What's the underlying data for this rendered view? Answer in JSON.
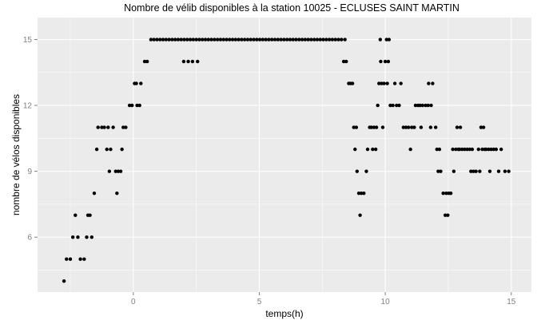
{
  "chart_data": {
    "type": "scatter",
    "title": "Nombre de vélib disponibles à la station 10025 - ECLUSES SAINT MARTIN",
    "xlabel": "temps(h)",
    "ylabel": "nombre de vélos disponibles",
    "xlim": [
      -3.8,
      15.8
    ],
    "ylim": [
      3.5,
      16.0
    ],
    "x_ticks": [
      0,
      5,
      10,
      15
    ],
    "y_ticks": [
      6,
      9,
      12,
      15
    ],
    "grid": true,
    "legend": "none",
    "colors": {
      "panel": "#ebebeb",
      "grid": "#ffffff",
      "point": "#000000",
      "tick_label": "#7f7f7f"
    },
    "points": [
      [
        -2.75,
        4
      ],
      [
        -2.65,
        5
      ],
      [
        -2.5,
        5
      ],
      [
        -2.4,
        6
      ],
      [
        -2.3,
        7
      ],
      [
        -2.2,
        6
      ],
      [
        -2.1,
        5
      ],
      [
        -1.95,
        5
      ],
      [
        -1.85,
        6
      ],
      [
        -1.8,
        7
      ],
      [
        -1.72,
        7
      ],
      [
        -1.65,
        6
      ],
      [
        -1.55,
        8
      ],
      [
        -1.45,
        10
      ],
      [
        -1.4,
        11
      ],
      [
        -1.25,
        11
      ],
      [
        -1.15,
        11
      ],
      [
        -1.05,
        10
      ],
      [
        -1.0,
        11
      ],
      [
        -0.95,
        9
      ],
      [
        -0.9,
        10
      ],
      [
        -0.8,
        11
      ],
      [
        -0.7,
        9
      ],
      [
        -0.65,
        8
      ],
      [
        -0.6,
        9
      ],
      [
        -0.5,
        9
      ],
      [
        -0.45,
        10
      ],
      [
        -0.4,
        11
      ],
      [
        -0.3,
        11
      ],
      [
        -0.15,
        12
      ],
      [
        -0.05,
        12
      ],
      [
        0.05,
        13
      ],
      [
        0.12,
        13
      ],
      [
        0.15,
        12
      ],
      [
        0.25,
        12
      ],
      [
        0.3,
        13
      ],
      [
        0.45,
        14
      ],
      [
        0.55,
        14
      ],
      [
        0.7,
        15
      ],
      [
        0.82,
        15
      ],
      [
        0.94,
        15
      ],
      [
        1.06,
        15
      ],
      [
        1.18,
        15
      ],
      [
        1.3,
        15
      ],
      [
        1.42,
        15
      ],
      [
        1.54,
        15
      ],
      [
        1.66,
        15
      ],
      [
        1.78,
        15
      ],
      [
        1.9,
        15
      ],
      [
        2.0,
        14
      ],
      [
        2.02,
        15
      ],
      [
        2.14,
        15
      ],
      [
        2.18,
        14
      ],
      [
        2.26,
        15
      ],
      [
        2.35,
        14
      ],
      [
        2.38,
        15
      ],
      [
        2.5,
        15
      ],
      [
        2.55,
        14
      ],
      [
        2.62,
        15
      ],
      [
        2.74,
        15
      ],
      [
        2.86,
        15
      ],
      [
        2.98,
        15
      ],
      [
        3.1,
        15
      ],
      [
        3.22,
        15
      ],
      [
        3.34,
        15
      ],
      [
        3.46,
        15
      ],
      [
        3.58,
        15
      ],
      [
        3.7,
        15
      ],
      [
        3.82,
        15
      ],
      [
        3.94,
        15
      ],
      [
        4.06,
        15
      ],
      [
        4.18,
        15
      ],
      [
        4.3,
        15
      ],
      [
        4.42,
        15
      ],
      [
        4.54,
        15
      ],
      [
        4.66,
        15
      ],
      [
        4.78,
        15
      ],
      [
        4.9,
        15
      ],
      [
        5.02,
        15
      ],
      [
        5.14,
        15
      ],
      [
        5.26,
        15
      ],
      [
        5.38,
        15
      ],
      [
        5.5,
        15
      ],
      [
        5.62,
        15
      ],
      [
        5.74,
        15
      ],
      [
        5.86,
        15
      ],
      [
        5.98,
        15
      ],
      [
        6.1,
        15
      ],
      [
        6.22,
        15
      ],
      [
        6.34,
        15
      ],
      [
        6.46,
        15
      ],
      [
        6.58,
        15
      ],
      [
        6.7,
        15
      ],
      [
        6.82,
        15
      ],
      [
        6.94,
        15
      ],
      [
        7.06,
        15
      ],
      [
        7.18,
        15
      ],
      [
        7.3,
        15
      ],
      [
        7.42,
        15
      ],
      [
        7.54,
        15
      ],
      [
        7.66,
        15
      ],
      [
        7.78,
        15
      ],
      [
        7.9,
        15
      ],
      [
        8.02,
        15
      ],
      [
        8.14,
        15
      ],
      [
        8.26,
        15
      ],
      [
        8.35,
        14
      ],
      [
        8.4,
        15
      ],
      [
        8.45,
        14
      ],
      [
        8.55,
        13
      ],
      [
        8.62,
        13
      ],
      [
        8.7,
        13
      ],
      [
        8.75,
        11
      ],
      [
        8.8,
        10
      ],
      [
        8.85,
        11
      ],
      [
        8.88,
        9
      ],
      [
        8.95,
        8
      ],
      [
        9.0,
        7
      ],
      [
        9.05,
        8
      ],
      [
        9.15,
        8
      ],
      [
        9.25,
        9
      ],
      [
        9.3,
        10
      ],
      [
        9.38,
        11
      ],
      [
        9.45,
        11
      ],
      [
        9.5,
        10
      ],
      [
        9.55,
        11
      ],
      [
        9.62,
        10
      ],
      [
        9.65,
        11
      ],
      [
        9.7,
        12
      ],
      [
        9.75,
        13
      ],
      [
        9.8,
        15
      ],
      [
        9.82,
        14
      ],
      [
        9.85,
        13
      ],
      [
        9.9,
        11
      ],
      [
        9.95,
        13
      ],
      [
        10.0,
        14
      ],
      [
        10.05,
        15
      ],
      [
        10.08,
        13
      ],
      [
        10.12,
        14
      ],
      [
        10.15,
        15
      ],
      [
        10.2,
        12
      ],
      [
        10.3,
        12
      ],
      [
        10.38,
        13
      ],
      [
        10.45,
        12
      ],
      [
        10.55,
        12
      ],
      [
        10.62,
        13
      ],
      [
        10.72,
        11
      ],
      [
        10.82,
        11
      ],
      [
        10.92,
        11
      ],
      [
        11.0,
        10
      ],
      [
        11.05,
        11
      ],
      [
        11.15,
        11
      ],
      [
        11.2,
        12
      ],
      [
        11.3,
        12
      ],
      [
        11.38,
        12
      ],
      [
        11.42,
        11
      ],
      [
        11.48,
        12
      ],
      [
        11.6,
        12
      ],
      [
        11.7,
        12
      ],
      [
        11.72,
        13
      ],
      [
        11.8,
        11
      ],
      [
        11.82,
        12
      ],
      [
        11.88,
        13
      ],
      [
        12.0,
        11
      ],
      [
        12.05,
        10
      ],
      [
        12.1,
        9
      ],
      [
        12.15,
        10
      ],
      [
        12.2,
        9
      ],
      [
        12.3,
        8
      ],
      [
        12.38,
        7
      ],
      [
        12.42,
        8
      ],
      [
        12.48,
        7
      ],
      [
        12.52,
        8
      ],
      [
        12.6,
        8
      ],
      [
        12.68,
        10
      ],
      [
        12.72,
        9
      ],
      [
        12.8,
        10
      ],
      [
        12.85,
        11
      ],
      [
        12.9,
        10
      ],
      [
        12.95,
        10
      ],
      [
        12.98,
        11
      ],
      [
        13.05,
        10
      ],
      [
        13.15,
        10
      ],
      [
        13.25,
        10
      ],
      [
        13.35,
        10
      ],
      [
        13.4,
        9
      ],
      [
        13.45,
        10
      ],
      [
        13.5,
        9
      ],
      [
        13.6,
        9
      ],
      [
        13.7,
        10
      ],
      [
        13.75,
        9
      ],
      [
        13.8,
        11
      ],
      [
        13.85,
        10
      ],
      [
        13.9,
        11
      ],
      [
        13.95,
        10
      ],
      [
        14.0,
        10
      ],
      [
        14.1,
        10
      ],
      [
        14.15,
        9
      ],
      [
        14.2,
        10
      ],
      [
        14.3,
        10
      ],
      [
        14.4,
        10
      ],
      [
        14.5,
        9
      ],
      [
        14.6,
        10
      ],
      [
        14.75,
        9
      ],
      [
        14.9,
        9
      ]
    ]
  }
}
